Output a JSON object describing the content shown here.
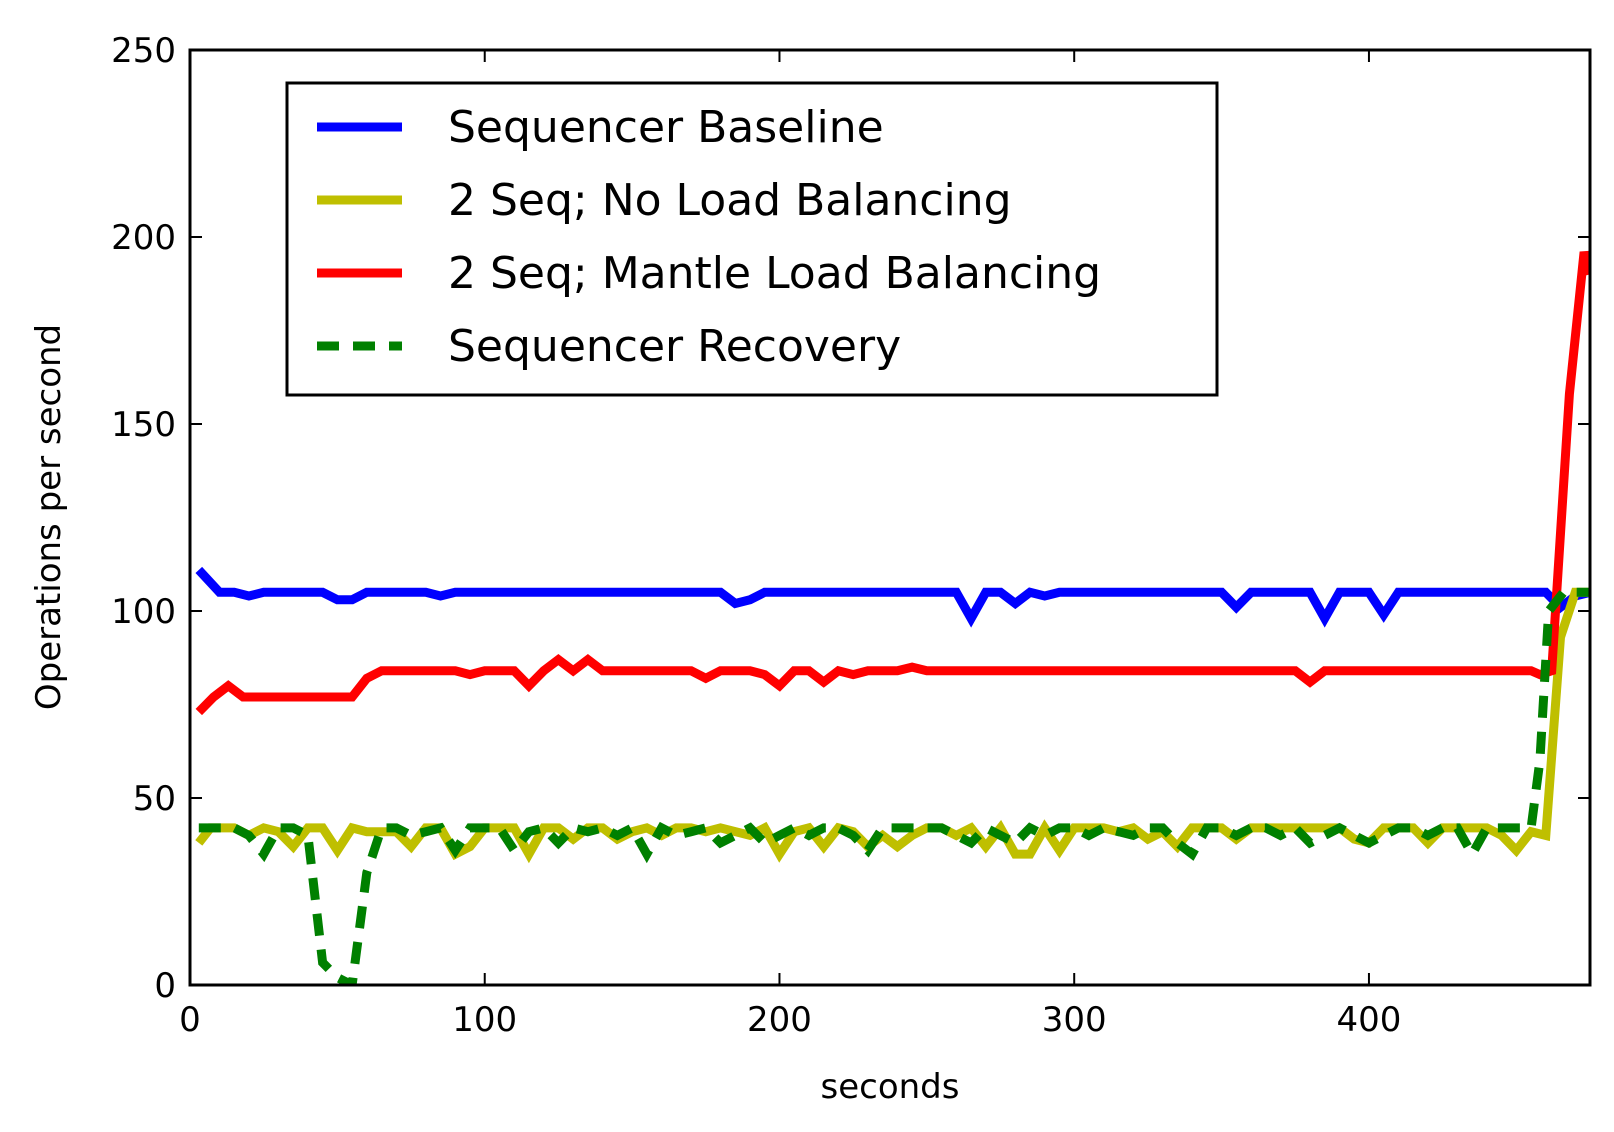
{
  "chart_data": {
    "type": "line",
    "title": "",
    "xlabel": "seconds",
    "ylabel": "Operations per second",
    "xlim": [
      0,
      475
    ],
    "ylim": [
      0,
      250
    ],
    "xticks": [
      0,
      100,
      200,
      300,
      400
    ],
    "yticks": [
      0,
      50,
      100,
      150,
      200,
      250
    ],
    "x_tick_labels": [
      "0",
      "100",
      "200",
      "300",
      "400"
    ],
    "y_tick_labels": [
      "0",
      "50",
      "100",
      "150",
      "200",
      "250"
    ],
    "grid": false,
    "legend_position": "upper-left",
    "series": [
      {
        "name": "Sequencer Baseline",
        "color": "#0000ff",
        "style": "solid",
        "points": [
          [
            3,
            111
          ],
          [
            10,
            105
          ],
          [
            15,
            105
          ],
          [
            20,
            104
          ],
          [
            25,
            105
          ],
          [
            45,
            105
          ],
          [
            50,
            103
          ],
          [
            55,
            103
          ],
          [
            60,
            105
          ],
          [
            80,
            105
          ],
          [
            85,
            104
          ],
          [
            90,
            105
          ],
          [
            180,
            105
          ],
          [
            185,
            102
          ],
          [
            190,
            103
          ],
          [
            195,
            105
          ],
          [
            260,
            105
          ],
          [
            265,
            98
          ],
          [
            270,
            105
          ],
          [
            275,
            105
          ],
          [
            280,
            102
          ],
          [
            285,
            105
          ],
          [
            290,
            104
          ],
          [
            295,
            105
          ],
          [
            350,
            105
          ],
          [
            355,
            101
          ],
          [
            360,
            105
          ],
          [
            380,
            105
          ],
          [
            385,
            98
          ],
          [
            390,
            105
          ],
          [
            400,
            105
          ],
          [
            405,
            99
          ],
          [
            410,
            105
          ],
          [
            460,
            105
          ],
          [
            465,
            101
          ],
          [
            470,
            104
          ],
          [
            475,
            105
          ]
        ]
      },
      {
        "name": "2 Seq; No Load Balancing",
        "color": "#bfbf00",
        "style": "solid",
        "points": [
          [
            3,
            38
          ],
          [
            7,
            42
          ],
          [
            15,
            42
          ],
          [
            20,
            40
          ],
          [
            25,
            42
          ],
          [
            30,
            41
          ],
          [
            35,
            37
          ],
          [
            40,
            42
          ],
          [
            45,
            42
          ],
          [
            50,
            36
          ],
          [
            55,
            42
          ],
          [
            60,
            41
          ],
          [
            65,
            41
          ],
          [
            70,
            41
          ],
          [
            75,
            37
          ],
          [
            80,
            42
          ],
          [
            85,
            42
          ],
          [
            90,
            35
          ],
          [
            95,
            37
          ],
          [
            100,
            42
          ],
          [
            110,
            42
          ],
          [
            115,
            35
          ],
          [
            120,
            42
          ],
          [
            125,
            42
          ],
          [
            130,
            39
          ],
          [
            135,
            42
          ],
          [
            140,
            42
          ],
          [
            145,
            39
          ],
          [
            150,
            41
          ],
          [
            155,
            42
          ],
          [
            160,
            40
          ],
          [
            165,
            42
          ],
          [
            170,
            42
          ],
          [
            175,
            41
          ],
          [
            180,
            42
          ],
          [
            190,
            40
          ],
          [
            195,
            42
          ],
          [
            200,
            35
          ],
          [
            205,
            41
          ],
          [
            210,
            42
          ],
          [
            215,
            37
          ],
          [
            220,
            42
          ],
          [
            225,
            41
          ],
          [
            230,
            37
          ],
          [
            235,
            40
          ],
          [
            240,
            37
          ],
          [
            245,
            40
          ],
          [
            250,
            42
          ],
          [
            255,
            42
          ],
          [
            260,
            40
          ],
          [
            265,
            42
          ],
          [
            270,
            37
          ],
          [
            275,
            42
          ],
          [
            280,
            35
          ],
          [
            285,
            35
          ],
          [
            290,
            42
          ],
          [
            295,
            36
          ],
          [
            300,
            42
          ],
          [
            310,
            42
          ],
          [
            315,
            41
          ],
          [
            320,
            42
          ],
          [
            325,
            39
          ],
          [
            330,
            41
          ],
          [
            335,
            37
          ],
          [
            340,
            42
          ],
          [
            350,
            42
          ],
          [
            355,
            39
          ],
          [
            360,
            42
          ],
          [
            365,
            42
          ],
          [
            370,
            42
          ],
          [
            375,
            42
          ],
          [
            380,
            42
          ],
          [
            390,
            42
          ],
          [
            395,
            39
          ],
          [
            400,
            38
          ],
          [
            405,
            42
          ],
          [
            415,
            42
          ],
          [
            420,
            38
          ],
          [
            425,
            42
          ],
          [
            440,
            42
          ],
          [
            445,
            40
          ],
          [
            450,
            36
          ],
          [
            455,
            41
          ],
          [
            460,
            40
          ],
          [
            465,
            93
          ],
          [
            470,
            105
          ],
          [
            475,
            105
          ]
        ]
      },
      {
        "name": "2 Seq; Mantle Load Balancing",
        "color": "#ff0000",
        "style": "solid",
        "points": [
          [
            3,
            73
          ],
          [
            8,
            77
          ],
          [
            13,
            80
          ],
          [
            18,
            77
          ],
          [
            55,
            77
          ],
          [
            60,
            82
          ],
          [
            65,
            84
          ],
          [
            90,
            84
          ],
          [
            95,
            83
          ],
          [
            100,
            84
          ],
          [
            110,
            84
          ],
          [
            115,
            80
          ],
          [
            120,
            84
          ],
          [
            125,
            87
          ],
          [
            130,
            84
          ],
          [
            135,
            87
          ],
          [
            140,
            84
          ],
          [
            170,
            84
          ],
          [
            175,
            82
          ],
          [
            180,
            84
          ],
          [
            190,
            84
          ],
          [
            195,
            83
          ],
          [
            200,
            80
          ],
          [
            205,
            84
          ],
          [
            210,
            84
          ],
          [
            215,
            81
          ],
          [
            220,
            84
          ],
          [
            225,
            83
          ],
          [
            230,
            84
          ],
          [
            240,
            84
          ],
          [
            245,
            85
          ],
          [
            250,
            84
          ],
          [
            375,
            84
          ],
          [
            380,
            81
          ],
          [
            385,
            84
          ],
          [
            455,
            84
          ],
          [
            458,
            83
          ],
          [
            462,
            84
          ],
          [
            468,
            158
          ],
          [
            473,
            196
          ],
          [
            475,
            190
          ]
        ]
      },
      {
        "name": "Sequencer Recovery",
        "color": "#008000",
        "style": "dashed",
        "points": [
          [
            3,
            42
          ],
          [
            15,
            42
          ],
          [
            20,
            40
          ],
          [
            25,
            35
          ],
          [
            30,
            42
          ],
          [
            35,
            42
          ],
          [
            40,
            40
          ],
          [
            45,
            6
          ],
          [
            50,
            2
          ],
          [
            55,
            0
          ],
          [
            60,
            30
          ],
          [
            65,
            42
          ],
          [
            70,
            42
          ],
          [
            75,
            40
          ],
          [
            80,
            41
          ],
          [
            85,
            42
          ],
          [
            90,
            36
          ],
          [
            95,
            42
          ],
          [
            100,
            42
          ],
          [
            105,
            42
          ],
          [
            110,
            36
          ],
          [
            115,
            41
          ],
          [
            120,
            42
          ],
          [
            125,
            38
          ],
          [
            130,
            42
          ],
          [
            135,
            41
          ],
          [
            140,
            42
          ],
          [
            145,
            40
          ],
          [
            150,
            42
          ],
          [
            155,
            35
          ],
          [
            160,
            42
          ],
          [
            165,
            40
          ],
          [
            170,
            41
          ],
          [
            175,
            42
          ],
          [
            180,
            38
          ],
          [
            185,
            40
          ],
          [
            190,
            42
          ],
          [
            195,
            38
          ],
          [
            200,
            40
          ],
          [
            205,
            42
          ],
          [
            210,
            40
          ],
          [
            215,
            42
          ],
          [
            220,
            42
          ],
          [
            225,
            40
          ],
          [
            230,
            36
          ],
          [
            235,
            42
          ],
          [
            245,
            42
          ],
          [
            250,
            42
          ],
          [
            255,
            42
          ],
          [
            260,
            40
          ],
          [
            265,
            38
          ],
          [
            270,
            42
          ],
          [
            275,
            40
          ],
          [
            280,
            38
          ],
          [
            285,
            42
          ],
          [
            290,
            40
          ],
          [
            295,
            42
          ],
          [
            300,
            42
          ],
          [
            305,
            40
          ],
          [
            310,
            42
          ],
          [
            320,
            40
          ],
          [
            325,
            42
          ],
          [
            330,
            42
          ],
          [
            335,
            38
          ],
          [
            340,
            35
          ],
          [
            345,
            42
          ],
          [
            350,
            42
          ],
          [
            355,
            40
          ],
          [
            360,
            42
          ],
          [
            365,
            42
          ],
          [
            370,
            40
          ],
          [
            375,
            42
          ],
          [
            380,
            38
          ],
          [
            385,
            40
          ],
          [
            390,
            42
          ],
          [
            395,
            40
          ],
          [
            400,
            38
          ],
          [
            405,
            40
          ],
          [
            410,
            42
          ],
          [
            415,
            42
          ],
          [
            420,
            40
          ],
          [
            425,
            42
          ],
          [
            430,
            42
          ],
          [
            435,
            35
          ],
          [
            440,
            42
          ],
          [
            445,
            42
          ],
          [
            450,
            42
          ],
          [
            455,
            42
          ],
          [
            458,
            60
          ],
          [
            461,
            100
          ],
          [
            466,
            105
          ],
          [
            475,
            105
          ]
        ]
      }
    ]
  }
}
